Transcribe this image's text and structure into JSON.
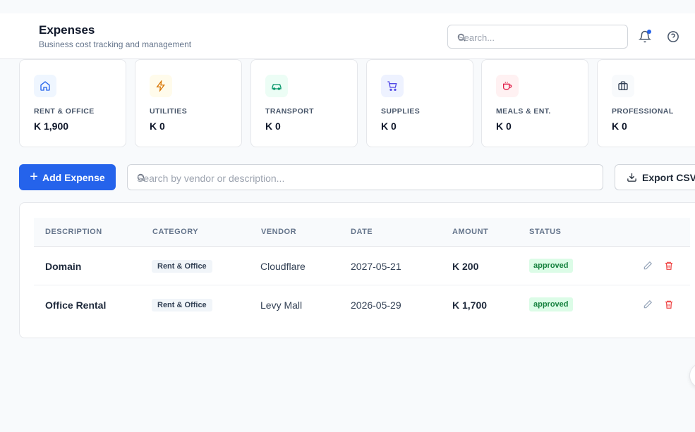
{
  "header": {
    "title": "Expenses",
    "subtitle": "Business cost tracking and management",
    "search_placeholder": "Search...",
    "notification_icon": "bell-icon",
    "help_icon": "help-circle-icon",
    "accent": "#2563eb"
  },
  "cards": [
    {
      "label": "RENT & OFFICE",
      "value": "K 1,900",
      "icon": "home-icon",
      "color": "#2563eb",
      "bg": "#eff6ff"
    },
    {
      "label": "UTILITIES",
      "value": "K 0",
      "icon": "bolt-icon",
      "color": "#d97706",
      "bg": "#fffbeb"
    },
    {
      "label": "TRANSPORT",
      "value": "K 0",
      "icon": "car-icon",
      "color": "#059669",
      "bg": "#ecfdf5"
    },
    {
      "label": "SUPPLIES",
      "value": "K 0",
      "icon": "cart-icon",
      "color": "#4f46e5",
      "bg": "#eef2ff"
    },
    {
      "label": "MEALS & ENT.",
      "value": "K 0",
      "icon": "coffee-icon",
      "color": "#e11d48",
      "bg": "#fff1f2"
    },
    {
      "label": "PROFESSIONAL",
      "value": "K 0",
      "icon": "briefcase-icon",
      "color": "#334155",
      "bg": "#f8fafc"
    }
  ],
  "toolbar": {
    "add_label": "Add Expense",
    "search_placeholder": "Search by vendor or description...",
    "export_label": "Export CSV"
  },
  "table": {
    "columns": [
      "DESCRIPTION",
      "CATEGORY",
      "VENDOR",
      "DATE",
      "AMOUNT",
      "STATUS"
    ],
    "rows": [
      {
        "description": "Domain",
        "category": "Rent & Office",
        "vendor": "Cloudflare",
        "date": "2027-05-21",
        "amount": "K 200",
        "status": "approved"
      },
      {
        "description": "Office Rental",
        "category": "Rent & Office",
        "vendor": "Levy Mall",
        "date": "2026-05-29",
        "amount": "K 1,700",
        "status": "approved"
      }
    ],
    "status_color": "#15803d",
    "delete_color": "#ef4444"
  }
}
